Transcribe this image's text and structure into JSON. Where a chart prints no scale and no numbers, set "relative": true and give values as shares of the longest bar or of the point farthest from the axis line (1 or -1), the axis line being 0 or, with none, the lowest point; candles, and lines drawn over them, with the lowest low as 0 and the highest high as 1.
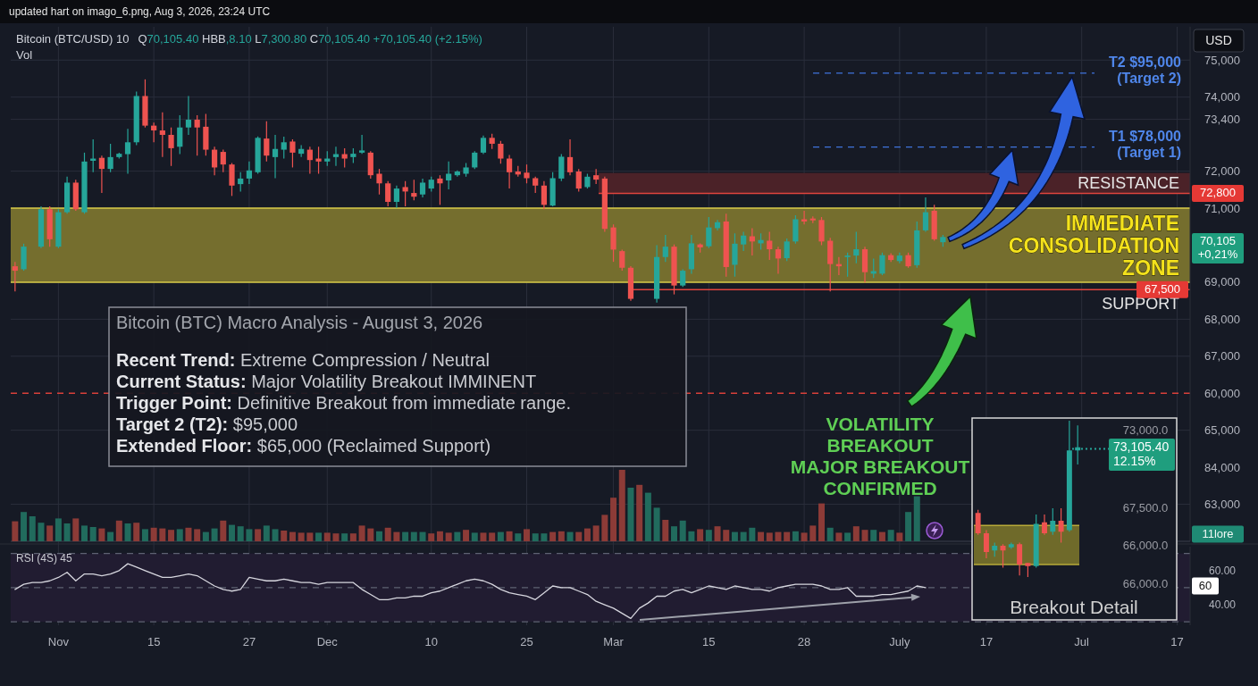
{
  "chart_data": [
    {
      "type": "candlestick",
      "title": "Bitcoin (BTC/USD) 10",
      "subtitle": "Q70,105.40 HBB,8.10 L7,300.80 C70,105.40 +70,105.40 (+2.15%)",
      "categories": [
        null,
        null,
        null,
        null,
        null,
        null,
        null,
        null,
        null,
        null,
        null,
        null,
        null,
        null,
        null,
        null,
        null,
        null,
        null,
        null,
        null,
        null,
        null,
        null,
        null,
        null,
        null,
        null,
        null,
        null,
        null,
        null,
        null,
        null,
        null,
        null,
        null,
        null,
        null,
        null,
        null,
        null,
        null,
        null,
        null,
        null,
        null,
        null,
        null,
        null,
        null,
        null,
        null,
        null,
        null,
        null,
        null,
        null,
        null,
        null,
        null,
        null,
        null,
        null,
        null,
        null,
        null,
        null,
        null,
        null,
        null,
        null,
        null,
        null,
        null,
        null,
        null,
        null,
        null,
        null,
        null,
        null,
        null,
        null,
        null,
        null,
        null,
        null,
        null,
        null,
        null,
        null,
        null,
        null,
        null,
        null,
        null,
        null,
        null,
        null,
        null,
        null,
        null,
        null,
        null,
        null,
        null,
        null,
        null,
        null,
        null,
        null,
        null,
        null,
        null,
        null,
        null,
        null,
        null,
        null,
        null,
        null,
        null,
        null,
        null,
        null,
        null,
        null,
        null,
        null,
        null,
        null,
        null,
        null,
        null,
        null
      ],
      "ohlc": [
        [
          69430,
          69550,
          68750,
          69310
        ],
        [
          69350,
          70040,
          69310,
          69960
        ],
        null,
        [
          69960,
          71050,
          69920,
          70970
        ],
        [
          70970,
          71050,
          69960,
          70160
        ],
        [
          69960,
          70970,
          69920,
          70890
        ],
        [
          70890,
          71850,
          70850,
          71690
        ],
        [
          71690,
          71770,
          70930,
          70970
        ],
        [
          70890,
          72500,
          70850,
          72260
        ],
        [
          72280,
          72860,
          71970,
          72340
        ],
        [
          72360,
          72420,
          71410,
          72060
        ],
        [
          72060,
          72740,
          71970,
          72380
        ],
        [
          72380,
          72500,
          72340,
          72470
        ],
        [
          72460,
          73140,
          71930,
          72780
        ],
        [
          72780,
          74150,
          72700,
          74030
        ],
        [
          74030,
          74480,
          73180,
          73230
        ],
        [
          73230,
          73310,
          72780,
          73100
        ],
        [
          73100,
          73590,
          72380,
          72980
        ],
        [
          72980,
          73180,
          72140,
          72620
        ],
        [
          72660,
          73510,
          72460,
          73180
        ],
        [
          73180,
          74030,
          72980,
          73390
        ],
        [
          73390,
          73510,
          72420,
          73180
        ],
        [
          73200,
          73550,
          72420,
          72580
        ],
        [
          72580,
          72660,
          71890,
          72100
        ],
        [
          72520,
          72580,
          71970,
          72180
        ],
        [
          72180,
          72220,
          71330,
          71610
        ],
        [
          71650,
          71970,
          71450,
          71800
        ],
        [
          71800,
          72260,
          71650,
          72020
        ],
        [
          71970,
          72940,
          71930,
          72900
        ],
        [
          72880,
          73350,
          72260,
          72420
        ],
        [
          72380,
          72980,
          71810,
          72600
        ],
        [
          72580,
          72930,
          72340,
          72780
        ],
        [
          72800,
          72860,
          72100,
          72500
        ],
        [
          72470,
          72700,
          72380,
          72600
        ],
        [
          72580,
          72660,
          71930,
          72300
        ],
        [
          72340,
          72660,
          71930,
          72260
        ],
        [
          72260,
          72540,
          72140,
          72340
        ],
        [
          72380,
          72660,
          72140,
          72460
        ],
        [
          72460,
          72620,
          72100,
          72340
        ],
        [
          72380,
          72620,
          72220,
          72470
        ],
        [
          72500,
          72980,
          72470,
          72560
        ],
        [
          72500,
          72540,
          71800,
          71890
        ],
        [
          71930,
          72060,
          71370,
          71670
        ],
        [
          71670,
          71730,
          71050,
          71170
        ],
        [
          71170,
          71610,
          71010,
          71530
        ],
        [
          71570,
          71730,
          71050,
          71450
        ],
        [
          71410,
          71770,
          71210,
          71310
        ],
        [
          71370,
          71800,
          71290,
          71690
        ],
        [
          71530,
          71850,
          71450,
          71770
        ],
        [
          71800,
          71890,
          71090,
          71670
        ],
        [
          71750,
          72260,
          71510,
          71930
        ],
        [
          71890,
          72020,
          71850,
          71990
        ],
        [
          71930,
          72220,
          71850,
          72100
        ],
        [
          72100,
          72540,
          72060,
          72500
        ],
        [
          72500,
          72960,
          72460,
          72900
        ],
        [
          72900,
          73010,
          72600,
          72740
        ],
        [
          72740,
          72820,
          72200,
          72340
        ],
        [
          72340,
          72440,
          71530,
          71970
        ],
        [
          71990,
          72140,
          71850,
          71910
        ],
        [
          71960,
          72180,
          71670,
          71810
        ],
        [
          71810,
          71850,
          71410,
          71610
        ],
        [
          71610,
          71730,
          70970,
          71090
        ],
        [
          71070,
          71970,
          71050,
          71810
        ],
        [
          71800,
          72460,
          71730,
          72390
        ],
        [
          72380,
          72860,
          71890,
          71970
        ],
        [
          71990,
          72060,
          71450,
          71530
        ],
        [
          71570,
          71930,
          71530,
          71850
        ],
        [
          71890,
          72060,
          71650,
          71770
        ],
        [
          71800,
          71850,
          70360,
          70440
        ],
        [
          70480,
          70560,
          69550,
          69880
        ],
        [
          69840,
          69880,
          69310,
          69390
        ],
        [
          69390,
          69430,
          68500,
          68550
        ],
        null,
        null,
        [
          68550,
          70000,
          68450,
          69680
        ],
        [
          69680,
          70280,
          69550,
          69960
        ],
        [
          69960,
          70020,
          68670,
          68910
        ],
        [
          68910,
          69350,
          68870,
          69310
        ],
        [
          69350,
          70280,
          69230,
          70050
        ],
        [
          70020,
          70050,
          69800,
          69940
        ],
        [
          69970,
          70760,
          69920,
          70480
        ],
        [
          70460,
          70680,
          70400,
          70620
        ],
        [
          70640,
          70850,
          69150,
          69410
        ],
        [
          69470,
          70320,
          69150,
          70040
        ],
        [
          70020,
          70360,
          69840,
          70260
        ],
        [
          70240,
          70460,
          69720,
          70100
        ],
        [
          70050,
          70320,
          69880,
          70140
        ],
        [
          70120,
          70360,
          69600,
          69890
        ],
        [
          69890,
          69960,
          69230,
          69640
        ],
        [
          69650,
          70180,
          69570,
          70100
        ],
        [
          70100,
          70810,
          70040,
          70700
        ],
        [
          70700,
          70930,
          70560,
          70640
        ],
        [
          70720,
          70780,
          70600,
          70670
        ],
        [
          70680,
          70760,
          70000,
          70100
        ],
        [
          70120,
          70200,
          68750,
          69490
        ],
        [
          69490,
          69680,
          69190,
          69430
        ],
        [
          69680,
          69800,
          69150,
          69720
        ],
        [
          69720,
          70360,
          69510,
          69890
        ],
        [
          69890,
          69960,
          68990,
          69270
        ],
        [
          69230,
          69640,
          69110,
          69300
        ],
        [
          69230,
          69800,
          69190,
          69730
        ],
        [
          69730,
          69780,
          69550,
          69600
        ],
        [
          69570,
          69800,
          69510,
          69720
        ],
        [
          69730,
          69800,
          69390,
          69430
        ],
        [
          69460,
          70640,
          69390,
          70400
        ],
        [
          70400,
          71290,
          70360,
          70890
        ],
        [
          70930,
          71090,
          70120,
          70160
        ],
        [
          70080,
          70280,
          69960,
          70220
        ],
        null,
        null,
        null,
        null,
        null,
        null,
        null,
        null,
        null,
        null,
        null,
        null,
        null,
        null,
        null,
        null,
        null,
        null,
        null,
        null,
        null,
        null,
        null,
        null,
        null,
        null,
        null,
        null
      ],
      "ylim": [
        62000,
        75900
      ],
      "yticks": [
        {
          "value": 75000,
          "label": "75,000"
        },
        {
          "value": 74000,
          "label": "74,000"
        },
        {
          "value": 73400,
          "label": "73,400"
        },
        {
          "value": 72000,
          "label": "72,000"
        },
        {
          "value": 71000,
          "label": "71,000"
        },
        {
          "value": 69000,
          "label": "69,000"
        },
        {
          "value": 68000,
          "label": "68,000"
        },
        {
          "value": 67000,
          "label": "67,000"
        },
        {
          "value": 65000,
          "label": "65,000"
        },
        {
          "value": 63000,
          "label": "63,000"
        }
      ],
      "tick_labels": "y",
      "grid": "y",
      "bands": [
        {
          "axis": "y",
          "from": 71400,
          "to": 71950,
          "color": "#4b2228"
        },
        {
          "axis": "y",
          "from": 69000,
          "to": 71000,
          "label": "IMMEDIATE\nCONSOLIDATION\nZONE",
          "color": "#756e2e"
        }
      ],
      "ref_lines": [
        {
          "axis": "y",
          "value": 71400,
          "label": "RESISTANCE",
          "color": "#e0443e"
        },
        {
          "axis": "y",
          "value": 68800,
          "label": "SUPPORT",
          "color": "#e0443e"
        },
        {
          "axis": "y",
          "value": 66000,
          "color": "#d9403a",
          "line_style": "dashed"
        },
        {
          "axis": "y",
          "value": 74650,
          "label": "T2 $95,000\n(Target 2)",
          "color": "#3f73dc",
          "line_style": "dashed"
        },
        {
          "axis": "y",
          "value": 72650,
          "label": "T1 $78,000\n(Target 1)",
          "color": "#3f73dc",
          "line_style": "dashed"
        }
      ],
      "annotations": [
        "72,800",
        "67,500",
        "70,105\n+0,21%",
        "USD",
        "VOLATILITY\nBREAKOUT\nMAJOR BREAKOUT\nCONFIRMED",
        "Bitcoin (BTC) Macro Analysis - August 3, 2026",
        "Recent Trend: Extreme Compression / Neutral",
        "Current Status: Major Volatility Breakout IMMINENT",
        "Trigger Point: Definitive Breakout from immediate range.",
        "Target 2 (T2): $95,000",
        "Extended Floor: $65,000 (Reclaimed Support)",
        "updated hart on imago_6.png, Aug 3, 2026, 23:24 UTC"
      ]
    },
    {
      "type": "bar",
      "title": "Vol",
      "relative": true,
      "categories": [
        null,
        null,
        null,
        null,
        null,
        null,
        null,
        null,
        null,
        null,
        null,
        null,
        null,
        null,
        null,
        null,
        null,
        null,
        null,
        null,
        null,
        null,
        null,
        null,
        null,
        null,
        null,
        null,
        null,
        null,
        null,
        null,
        null,
        null,
        null,
        null,
        null,
        null,
        null,
        null,
        null,
        null,
        null,
        null,
        null,
        null,
        null,
        null,
        null,
        null,
        null,
        null,
        null,
        null,
        null,
        null,
        null,
        null,
        null,
        null,
        null,
        null,
        null,
        null,
        null,
        null,
        null,
        null,
        null,
        null,
        null,
        null,
        null,
        null,
        null,
        null,
        null,
        null,
        null,
        null,
        null,
        null,
        null,
        null,
        null,
        null,
        null,
        null,
        null,
        null,
        null,
        null,
        null,
        null,
        null,
        null,
        null,
        null,
        null,
        null,
        null,
        null,
        null,
        null,
        null,
        null,
        null,
        null,
        null,
        null,
        null,
        null,
        null,
        null,
        null,
        null,
        null,
        null,
        null,
        null,
        null,
        null,
        null,
        null,
        null,
        null,
        null,
        null,
        null,
        null,
        null,
        null,
        null,
        null,
        null,
        null
      ],
      "values": [
        0.28,
        0.41,
        0.35,
        0.26,
        0.22,
        0.32,
        0.25,
        0.32,
        0.22,
        0.2,
        0.18,
        0.13,
        0.29,
        0.25,
        0.26,
        0.17,
        0.19,
        0.18,
        0.16,
        0.17,
        0.19,
        0.17,
        0.13,
        0.18,
        0.29,
        0.23,
        0.21,
        0.17,
        0.17,
        0.22,
        0.17,
        0.15,
        0.13,
        0.12,
        0.12,
        0.12,
        0.12,
        0.11,
        0.11,
        0.11,
        0.22,
        0.18,
        0.14,
        0.19,
        0.13,
        0.13,
        0.13,
        0.13,
        0.11,
        0.14,
        0.12,
        0.13,
        0.16,
        0.12,
        0.12,
        0.12,
        0.13,
        0.14,
        0.11,
        0.17,
        0.11,
        0.11,
        0.13,
        0.14,
        0.13,
        0.13,
        0.18,
        0.22,
        0.37,
        0.61,
        1,
        0.75,
        0.79,
        0.68,
        0.47,
        0.3,
        0.21,
        0.29,
        0.14,
        0.17,
        0.16,
        0.21,
        0.16,
        0.13,
        0.13,
        0.19,
        0.13,
        0.12,
        0.13,
        0.13,
        0.14,
        0.12,
        0.22,
        0.53,
        0.19,
        0.12,
        0.12,
        0.21,
        0.16,
        0.16,
        0.13,
        0.16,
        0.12,
        0.41,
        0.63,
        null,
        null,
        null,
        null,
        null,
        null,
        null,
        null,
        null,
        null,
        null,
        null,
        null,
        null,
        null,
        null,
        null,
        null,
        null,
        null,
        null,
        null,
        null,
        null,
        null,
        null,
        null,
        null,
        null,
        null,
        null
      ],
      "colors": [
        "#8c3b37",
        "#216b5d",
        "#216b5d",
        "#216b5d",
        "#8c3b37",
        "#216b5d",
        "#216b5d",
        "#8c3b37",
        "#216b5d",
        "#216b5d",
        "#8c3b37",
        "#216b5d",
        "#8c3b37",
        "#216b5d",
        "#8c3b37",
        "#216b5d",
        "#8c3b37",
        "#8c3b37",
        "#8c3b37",
        "#216b5d",
        "#8c3b37",
        "#8c3b37",
        "#216b5d",
        "#216b5d",
        "#8c3b37",
        "#216b5d",
        "#216b5d",
        "#216b5d",
        "#8c3b37",
        "#216b5d",
        "#216b5d",
        "#8c3b37",
        "#8c3b37",
        "#8c3b37",
        "#8c3b37",
        "#216b5d",
        "#8c3b37",
        "#8c3b37",
        "#216b5d",
        "#8c3b37",
        "#8c3b37",
        "#8c3b37",
        "#216b5d",
        "#8c3b37",
        "#8c3b37",
        "#216b5d",
        "#216b5d",
        "#216b5d",
        "#8c3b37",
        "#8c3b37",
        "#8c3b37",
        "#216b5d",
        "#8c3b37",
        "#216b5d",
        "#8c3b37",
        "#8c3b37",
        "#216b5d",
        "#8c3b37",
        "#216b5d",
        "#8c3b37",
        "#216b5d",
        "#216b5d",
        "#8c3b37",
        "#8c3b37",
        "#216b5d",
        "#8c3b37",
        "#8c3b37",
        "#8c3b37",
        "#8c3b37",
        "#8c3b37",
        "#8c3b37",
        "#216b5d",
        "#8c3b37",
        "#216b5d",
        "#216b5d",
        "#8c3b37",
        "#216b5d",
        "#216b5d",
        "#216b5d",
        "#8c3b37",
        "#216b5d",
        "#8c3b37",
        "#8c3b37",
        "#216b5d",
        "#216b5d",
        "#216b5d",
        "#8c3b37",
        "#8c3b37",
        "#8c3b37",
        "#8c3b37",
        "#216b5d",
        "#8c3b37",
        "#8c3b37",
        "#8c3b37",
        "#216b5d",
        "#8c3b37",
        "#216b5d",
        "#8c3b37",
        "#8c3b37",
        "#216b5d",
        "#8c3b37",
        "#216b5d",
        "#8c3b37",
        "#216b5d",
        "#216b5d",
        null,
        null,
        null,
        null,
        null,
        null,
        null,
        null,
        null,
        null,
        null,
        null,
        null,
        null,
        null,
        null,
        null,
        null,
        null,
        null,
        null,
        null,
        null,
        null,
        null,
        null,
        null,
        null,
        null,
        null,
        null
      ],
      "tick_labels": false,
      "annotations": [
        "11lore",
        "60,000",
        "84,000"
      ]
    },
    {
      "type": "line",
      "title": "RSI (4S) 45",
      "color": "#d6d6de",
      "categories": [
        null,
        null,
        null,
        null,
        null,
        "Nov",
        null,
        null,
        null,
        null,
        null,
        null,
        null,
        null,
        null,
        null,
        "15",
        null,
        null,
        null,
        null,
        null,
        null,
        null,
        null,
        null,
        null,
        "27",
        null,
        null,
        null,
        null,
        null,
        null,
        null,
        null,
        "Dec",
        null,
        null,
        null,
        null,
        null,
        null,
        null,
        null,
        null,
        null,
        null,
        "10",
        null,
        null,
        null,
        null,
        null,
        null,
        null,
        null,
        null,
        null,
        "25",
        null,
        null,
        null,
        null,
        null,
        null,
        null,
        null,
        null,
        "Mar",
        null,
        null,
        null,
        null,
        null,
        null,
        null,
        null,
        null,
        null,
        "15",
        null,
        null,
        null,
        null,
        null,
        null,
        null,
        null,
        null,
        null,
        "28",
        null,
        null,
        null,
        null,
        null,
        null,
        null,
        null,
        null,
        null,
        "July",
        null,
        null,
        null,
        null,
        null,
        null,
        null,
        null,
        null,
        "17",
        null,
        null,
        null,
        null,
        null,
        null,
        null,
        null,
        null,
        null,
        "Jul",
        null,
        null,
        null,
        null,
        null,
        null,
        null,
        null,
        null,
        null,
        "17",
        null
      ],
      "values": [
        49,
        52,
        53,
        53,
        54,
        56,
        59,
        54,
        58,
        58,
        57,
        58,
        60,
        64,
        62,
        60,
        58,
        56,
        56,
        57,
        58,
        57,
        54,
        51,
        49,
        48,
        49,
        56,
        55,
        54,
        54,
        55,
        54,
        53,
        53,
        52,
        53,
        53,
        53,
        53,
        49,
        46,
        43,
        43,
        44,
        44,
        45,
        45,
        47,
        48,
        50,
        52,
        54,
        55,
        54,
        52,
        49,
        47,
        46,
        45,
        43,
        47,
        51,
        50,
        50,
        48,
        46,
        42,
        40,
        38,
        35,
        32,
        38,
        41,
        45,
        45,
        48,
        49,
        47,
        49,
        51,
        50,
        49,
        51,
        50,
        49,
        49,
        48,
        50,
        51,
        52,
        52,
        52,
        51,
        49,
        49,
        50,
        45,
        45,
        45,
        46,
        46,
        47,
        48,
        51,
        50,
        null,
        null,
        null,
        null,
        null,
        null,
        null,
        null,
        null,
        null,
        null,
        null,
        null,
        null,
        null,
        null,
        null,
        null,
        null,
        null,
        null,
        null,
        null,
        null,
        null,
        null,
        null,
        null,
        null,
        null
      ],
      "ylim": [
        28,
        74
      ],
      "yticks": [
        {
          "value": 60,
          "label": "60.00"
        },
        {
          "value": 40,
          "label": "40.00"
        }
      ],
      "grid": "x",
      "bands": [
        {
          "axis": "y",
          "from": 30,
          "to": 70,
          "color": "#211c31"
        }
      ],
      "ref_lines": [
        {
          "axis": "y",
          "value": 70,
          "color": "#5e6272",
          "line_style": "dashed"
        },
        {
          "axis": "y",
          "value": 50,
          "color": "#5e6272",
          "line_style": "dashed"
        },
        {
          "axis": "y",
          "value": 30,
          "color": "#5e6272",
          "line_style": "dashed"
        }
      ],
      "annotations": [
        "60"
      ]
    },
    {
      "type": "candlestick",
      "title": "Breakout Detail",
      "relative": true,
      "categories": [
        null,
        null,
        null,
        null,
        null,
        null,
        null,
        null,
        null,
        null,
        null,
        null,
        null,
        null,
        null,
        null,
        null
      ],
      "ohlc": [
        [
          0.41,
          0.43,
          0.27,
          0.28
        ],
        [
          0.28,
          0.3,
          0.12,
          0.16
        ],
        [
          0.17,
          0.22,
          0.13,
          0.2
        ],
        [
          0.2,
          0.21,
          0.06,
          0.17
        ],
        [
          0.19,
          0.22,
          0.18,
          0.21
        ],
        [
          0.21,
          0.22,
          0.01,
          0.08
        ],
        [
          0.09,
          0.09,
          0,
          0.07
        ],
        [
          0.07,
          0.4,
          0.06,
          0.34
        ],
        [
          0.35,
          0.4,
          0.27,
          0.28
        ],
        [
          0.29,
          0.44,
          0.27,
          0.36
        ],
        [
          0.36,
          0.44,
          0.22,
          0.29
        ],
        [
          0.3,
          1,
          0.29,
          0.81
        ],
        [
          0.81,
          0.97,
          0.72,
          0.83
        ],
        null,
        null,
        null,
        null
      ],
      "bands": [
        {
          "axis": "y",
          "from": 0.08,
          "to": 0.33,
          "color": "#6f6a2a"
        }
      ],
      "ref_lines": [
        {
          "axis": "y",
          "value": 0.82,
          "color": "#26a69a",
          "line_style": "dotted"
        }
      ],
      "annotations": [
        "73,000.0",
        "67,500.0",
        "66,000.0",
        "66,000.0",
        "73,105.40\n12.15%"
      ]
    }
  ]
}
